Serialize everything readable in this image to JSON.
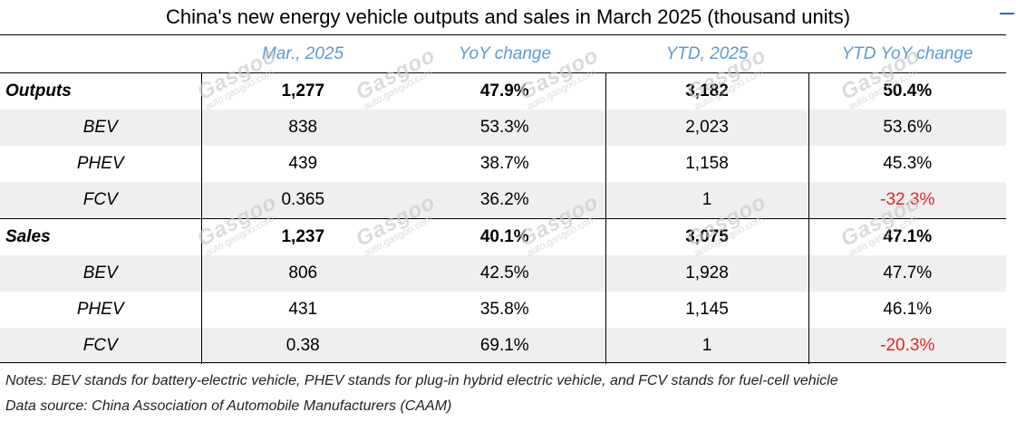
{
  "title": "China's new energy vehicle outputs and sales in March 2025 (thousand units)",
  "columns": [
    "",
    "Mar., 2025",
    "YoY change",
    "YTD, 2025",
    "YTD YoY change"
  ],
  "rows": [
    {
      "label": "Outputs",
      "values": [
        "1,277",
        "47.9%",
        "3,182",
        "50.4%"
      ]
    },
    {
      "label": "BEV",
      "values": [
        "838",
        "53.3%",
        "2,023",
        "53.6%"
      ]
    },
    {
      "label": "PHEV",
      "values": [
        "439",
        "38.7%",
        "1,158",
        "45.3%"
      ]
    },
    {
      "label": "FCV",
      "values": [
        "0.365",
        "36.2%",
        "1",
        "-32.3%"
      ]
    },
    {
      "label": "Sales",
      "values": [
        "1,237",
        "40.1%",
        "3,075",
        "47.1%"
      ]
    },
    {
      "label": "BEV",
      "values": [
        "806",
        "42.5%",
        "1,928",
        "47.7%"
      ]
    },
    {
      "label": "PHEV",
      "values": [
        "431",
        "35.8%",
        "1,145",
        "46.1%"
      ]
    },
    {
      "label": "FCV",
      "values": [
        "0.38",
        "69.1%",
        "1",
        "-20.3%"
      ]
    }
  ],
  "notes": [
    "Notes: BEV stands for battery-electric vehicle, PHEV stands for plug-in hybrid electric vehicle, and FCV stands for fuel-cell vehicle",
    "Data source: China Association of Automobile Manufacturers (CAAM)"
  ],
  "watermark": {
    "brand": "Gasgoo",
    "url": "auto.gasgoo.com"
  },
  "colors": {
    "header": "#5b9bd5",
    "negative": "#e8231c",
    "shade": "#efefef"
  },
  "chart_data": {
    "type": "table",
    "title": "China's new energy vehicle outputs and sales in March 2025 (thousand units)",
    "columns": [
      "Mar., 2025",
      "YoY change",
      "YTD, 2025",
      "YTD YoY change"
    ],
    "rows": [
      {
        "label": "Outputs",
        "values": [
          1277,
          47.9,
          3182,
          50.4
        ]
      },
      {
        "label": "BEV",
        "values": [
          838,
          53.3,
          2023,
          53.6
        ]
      },
      {
        "label": "PHEV",
        "values": [
          439,
          38.7,
          1158,
          45.3
        ]
      },
      {
        "label": "FCV",
        "values": [
          0.365,
          36.2,
          1,
          -32.3
        ]
      },
      {
        "label": "Sales",
        "values": [
          1237,
          40.1,
          3075,
          47.1
        ]
      },
      {
        "label": "BEV",
        "values": [
          806,
          42.5,
          1928,
          47.7
        ]
      },
      {
        "label": "PHEV",
        "values": [
          431,
          35.8,
          1145,
          46.1
        ]
      },
      {
        "label": "FCV",
        "values": [
          0.38,
          69.1,
          1,
          -20.3
        ]
      }
    ]
  }
}
